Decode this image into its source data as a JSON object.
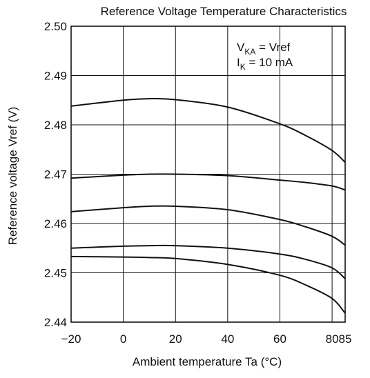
{
  "chart_data": {
    "type": "line",
    "title": "Reference Voltage Temperature Characteristics",
    "xlabel": "Ambient temperature  Ta  (°C)",
    "ylabel": "Reference voltage  Vref  (V)",
    "xlim": [
      -20,
      85
    ],
    "ylim": [
      2.44,
      2.5
    ],
    "x_ticks": [
      "−20",
      "0",
      "20",
      "40",
      "60",
      "80",
      "85"
    ],
    "x_tick_values": [
      -20,
      0,
      20,
      40,
      60,
      80,
      85
    ],
    "y_ticks": [
      "2.50",
      "2.49",
      "2.48",
      "2.47",
      "2.46",
      "2.45",
      "2.44"
    ],
    "y_tick_values": [
      2.5,
      2.49,
      2.48,
      2.47,
      2.46,
      2.45,
      2.44
    ],
    "grid": true,
    "annotation": {
      "line1_main": "V",
      "line1_sub": "KA",
      "line1_rest": " = Vref",
      "line2_main": "I",
      "line2_sub": "K",
      "line2_rest": " = 10 mA"
    },
    "series": [
      {
        "x": [
          -20,
          0,
          10,
          20,
          40,
          60,
          70,
          80,
          85
        ],
        "values": [
          2.4838,
          2.485,
          2.4853,
          2.4851,
          2.4836,
          2.4802,
          2.4778,
          2.4748,
          2.4724
        ]
      },
      {
        "x": [
          -20,
          0,
          10,
          20,
          40,
          60,
          70,
          80,
          85
        ],
        "values": [
          2.4692,
          2.4698,
          2.47,
          2.47,
          2.4697,
          2.4688,
          2.4683,
          2.4676,
          2.4668
        ]
      },
      {
        "x": [
          -20,
          0,
          10,
          20,
          40,
          60,
          70,
          80,
          85
        ],
        "values": [
          2.4624,
          2.4632,
          2.4635,
          2.4635,
          2.4628,
          2.4608,
          2.4593,
          2.4574,
          2.4556
        ]
      },
      {
        "x": [
          -20,
          0,
          10,
          20,
          40,
          60,
          70,
          80,
          85
        ],
        "values": [
          2.455,
          2.4554,
          2.4555,
          2.4555,
          2.455,
          2.4538,
          2.4527,
          2.451,
          2.4488
        ]
      },
      {
        "x": [
          -20,
          0,
          10,
          20,
          40,
          60,
          70,
          80,
          85
        ],
        "values": [
          2.4533,
          2.4532,
          2.4531,
          2.4529,
          2.4517,
          2.4495,
          2.4475,
          2.4448,
          2.4418
        ]
      }
    ]
  }
}
